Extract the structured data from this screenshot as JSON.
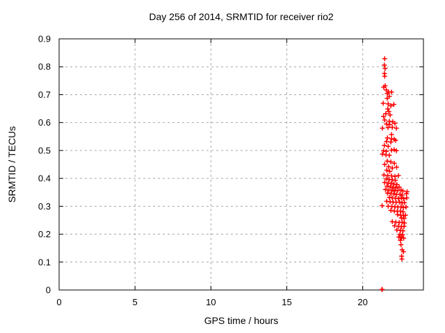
{
  "window": {
    "background": "#ffffff"
  },
  "chart_data": {
    "type": "scatter",
    "title": "Day 256 of 2014, SRMTID for receiver rio2",
    "xlabel": "GPS time / hours",
    "ylabel": "SRMTID / TECUs",
    "xlim": [
      0,
      24
    ],
    "ylim": [
      0,
      0.9
    ],
    "xticks": [
      0,
      5,
      10,
      15,
      20
    ],
    "xtick_labels": [
      "0",
      "5",
      "10",
      "15",
      "20"
    ],
    "yticks": [
      0,
      0.1,
      0.2,
      0.3,
      0.4,
      0.5,
      0.6,
      0.7,
      0.8,
      0.9
    ],
    "ytick_labels": [
      "0",
      "0.1",
      "0.2",
      "0.3",
      "0.4",
      "0.5",
      "0.6",
      "0.7",
      "0.8",
      "0.9"
    ],
    "grid": true,
    "legend_position": "none",
    "colors": {
      "marker": "#ff0000",
      "grid": "#a6a6a6",
      "axis": "#000000",
      "text": "#000000"
    },
    "series": [
      {
        "name": "SRMTID",
        "marker": "plus",
        "color": "#ff0000",
        "points": [
          [
            21.45,
            0.829
          ],
          [
            21.42,
            0.806
          ],
          [
            21.47,
            0.794
          ],
          [
            21.43,
            0.776
          ],
          [
            21.45,
            0.766
          ],
          [
            21.48,
            0.732
          ],
          [
            21.38,
            0.727
          ],
          [
            21.55,
            0.717
          ],
          [
            21.7,
            0.71
          ],
          [
            21.9,
            0.709
          ],
          [
            21.62,
            0.704
          ],
          [
            21.75,
            0.694
          ],
          [
            21.62,
            0.687
          ],
          [
            21.35,
            0.669
          ],
          [
            21.68,
            0.667
          ],
          [
            22.05,
            0.665
          ],
          [
            21.85,
            0.66
          ],
          [
            21.65,
            0.649
          ],
          [
            21.72,
            0.64
          ],
          [
            21.52,
            0.632
          ],
          [
            21.8,
            0.627
          ],
          [
            21.37,
            0.622
          ],
          [
            21.45,
            0.609
          ],
          [
            21.75,
            0.605
          ],
          [
            21.98,
            0.603
          ],
          [
            21.56,
            0.595
          ],
          [
            21.78,
            0.593
          ],
          [
            22.12,
            0.597
          ],
          [
            21.3,
            0.58
          ],
          [
            21.67,
            0.582
          ],
          [
            21.95,
            0.583
          ],
          [
            22.22,
            0.58
          ],
          [
            21.9,
            0.557
          ],
          [
            21.63,
            0.545
          ],
          [
            21.9,
            0.542
          ],
          [
            22.07,
            0.54
          ],
          [
            22.17,
            0.536
          ],
          [
            21.57,
            0.532
          ],
          [
            21.85,
            0.53
          ],
          [
            21.42,
            0.518
          ],
          [
            21.68,
            0.515
          ],
          [
            21.37,
            0.499
          ],
          [
            21.55,
            0.497
          ],
          [
            21.9,
            0.501
          ],
          [
            22.07,
            0.503
          ],
          [
            22.22,
            0.499
          ],
          [
            21.3,
            0.487
          ],
          [
            21.53,
            0.484
          ],
          [
            21.75,
            0.483
          ],
          [
            21.62,
            0.462
          ],
          [
            21.85,
            0.459
          ],
          [
            22.08,
            0.454
          ],
          [
            21.45,
            0.45
          ],
          [
            21.7,
            0.442
          ],
          [
            21.95,
            0.437
          ],
          [
            22.23,
            0.44
          ],
          [
            21.58,
            0.429
          ],
          [
            21.78,
            0.425
          ],
          [
            21.4,
            0.412
          ],
          [
            21.65,
            0.41
          ],
          [
            21.9,
            0.409
          ],
          [
            22.12,
            0.407
          ],
          [
            22.35,
            0.41
          ],
          [
            21.55,
            0.398
          ],
          [
            21.75,
            0.396
          ],
          [
            21.95,
            0.395
          ],
          [
            22.15,
            0.393
          ],
          [
            21.45,
            0.385
          ],
          [
            21.68,
            0.383
          ],
          [
            21.88,
            0.382
          ],
          [
            22.05,
            0.38
          ],
          [
            22.25,
            0.378
          ],
          [
            21.6,
            0.372
          ],
          [
            21.82,
            0.37
          ],
          [
            22.0,
            0.368
          ],
          [
            22.18,
            0.366
          ],
          [
            22.4,
            0.369
          ],
          [
            21.5,
            0.36
          ],
          [
            21.72,
            0.358
          ],
          [
            21.92,
            0.357
          ],
          [
            22.1,
            0.355
          ],
          [
            22.3,
            0.356
          ],
          [
            22.52,
            0.358
          ],
          [
            22.65,
            0.355
          ],
          [
            21.63,
            0.347
          ],
          [
            21.85,
            0.345
          ],
          [
            22.05,
            0.344
          ],
          [
            22.22,
            0.342
          ],
          [
            22.45,
            0.343
          ],
          [
            22.6,
            0.34
          ],
          [
            22.88,
            0.345
          ],
          [
            22.92,
            0.352
          ],
          [
            21.75,
            0.332
          ],
          [
            21.95,
            0.33
          ],
          [
            22.15,
            0.329
          ],
          [
            22.35,
            0.328
          ],
          [
            22.55,
            0.33
          ],
          [
            22.7,
            0.327
          ],
          [
            22.9,
            0.33
          ],
          [
            21.58,
            0.318
          ],
          [
            21.8,
            0.316
          ],
          [
            22.0,
            0.315
          ],
          [
            22.2,
            0.314
          ],
          [
            22.42,
            0.315
          ],
          [
            22.6,
            0.312
          ],
          [
            22.75,
            0.313
          ],
          [
            21.28,
            0.302
          ],
          [
            21.68,
            0.3
          ],
          [
            21.92,
            0.299
          ],
          [
            22.12,
            0.298
          ],
          [
            22.32,
            0.297
          ],
          [
            22.52,
            0.298
          ],
          [
            22.68,
            0.295
          ],
          [
            22.85,
            0.297
          ],
          [
            21.85,
            0.285
          ],
          [
            22.08,
            0.283
          ],
          [
            22.28,
            0.282
          ],
          [
            22.48,
            0.283
          ],
          [
            22.65,
            0.28
          ],
          [
            22.3,
            0.27
          ],
          [
            22.5,
            0.268
          ],
          [
            22.68,
            0.267
          ],
          [
            22.82,
            0.268
          ],
          [
            22.55,
            0.258
          ],
          [
            22.72,
            0.256
          ],
          [
            21.95,
            0.245
          ],
          [
            22.18,
            0.243
          ],
          [
            22.4,
            0.242
          ],
          [
            22.6,
            0.243
          ],
          [
            22.75,
            0.24
          ],
          [
            22.1,
            0.23
          ],
          [
            22.35,
            0.228
          ],
          [
            22.55,
            0.227
          ],
          [
            22.72,
            0.228
          ],
          [
            22.25,
            0.215
          ],
          [
            22.48,
            0.213
          ],
          [
            22.65,
            0.212
          ],
          [
            22.45,
            0.2
          ],
          [
            22.62,
            0.198
          ],
          [
            22.38,
            0.19
          ],
          [
            22.55,
            0.188
          ],
          [
            22.7,
            0.186
          ],
          [
            22.48,
            0.178
          ],
          [
            22.52,
            0.162
          ],
          [
            22.6,
            0.144
          ],
          [
            22.68,
            0.137
          ],
          [
            22.56,
            0.121
          ],
          [
            22.58,
            0.111
          ],
          [
            21.26,
            0.002
          ],
          [
            21.29,
            0.002
          ]
        ]
      }
    ]
  }
}
